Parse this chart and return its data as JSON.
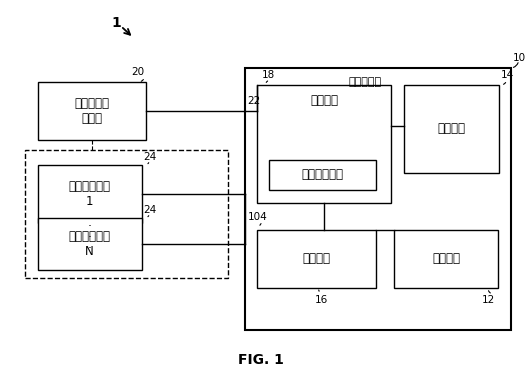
{
  "title": "FIG. 1",
  "bg_color": "#ffffff",
  "label_1": "1",
  "label_10": "10",
  "label_12": "12",
  "label_14": "14",
  "label_16": "16",
  "label_18": "18",
  "label_20": "20",
  "label_22": "22",
  "label_24a": "24",
  "label_24b": "24",
  "label_104": "104",
  "box_content_source": "コンテンツ\nソース",
  "box_data_source_1": "データソース\n1",
  "box_data_source_N": "データソース\nN",
  "box_user_device": "ユーザ機器",
  "box_control_circuit": "制御回路",
  "box_database": "データベース",
  "box_recording": "録画装置",
  "box_input": "入力装置",
  "box_display": "表示装置"
}
